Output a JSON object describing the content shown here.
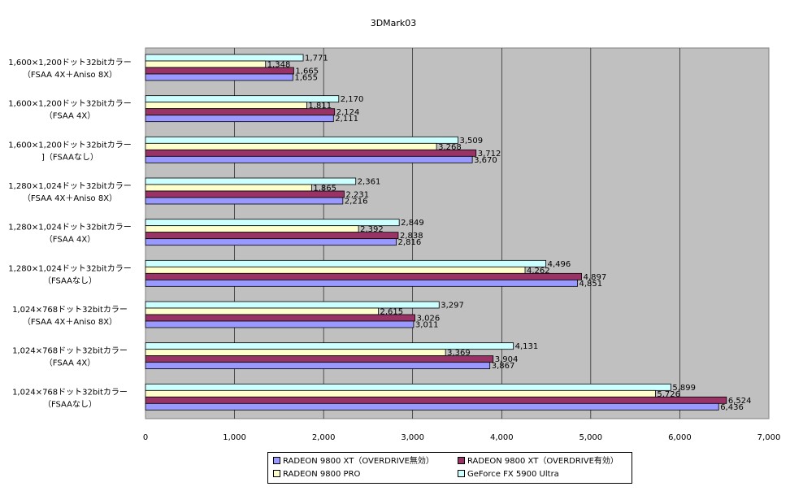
{
  "chart_data": {
    "type": "bar",
    "orientation": "horizontal",
    "title": "3DMark03",
    "xlabel": "",
    "ylabel": "",
    "xlim": [
      0,
      7000
    ],
    "xticks": [
      "0",
      "1,000",
      "2,000",
      "3,000",
      "4,000",
      "5,000",
      "6,000",
      "7,000"
    ],
    "grid": true,
    "legend_position": "bottom",
    "categories": [
      {
        "line1": "1,600×1,200ドット32bitカラー",
        "line2": "（FSAA 4X＋Aniso 8X）"
      },
      {
        "line1": "1,600×1,200ドット32bitカラー",
        "line2": "（FSAA 4X）"
      },
      {
        "line1": "1,600×1,200ドット32bitカラー",
        "line2": "]（FSAAなし）"
      },
      {
        "line1": "1,280×1,024ドット32bitカラー",
        "line2": "（FSAA 4X＋Aniso 8X）"
      },
      {
        "line1": "1,280×1,024ドット32bitカラー",
        "line2": "（FSAA 4X）"
      },
      {
        "line1": "1,280×1,024ドット32bitカラー",
        "line2": "（FSAAなし）"
      },
      {
        "line1": "1,024×768ドット32bitカラー",
        "line2": "（FSAA 4X＋Aniso 8X）"
      },
      {
        "line1": "1,024×768ドット32bitカラー",
        "line2": "（FSAA 4X）"
      },
      {
        "line1": "1,024×768ドット32bitカラー",
        "line2": "（FSAAなし）"
      }
    ],
    "series": [
      {
        "name": "GeForce FX 5900 Ultra",
        "color": "#ccffff",
        "values": [
          1771,
          2170,
          3509,
          2361,
          2849,
          4496,
          3297,
          4131,
          5899
        ],
        "labels": [
          "1,771",
          "2,170",
          "3,509",
          "2,361",
          "2,849",
          "4,496",
          "3,297",
          "4,131",
          "5,899"
        ]
      },
      {
        "name": "RADEON 9800 PRO",
        "color": "#ffffcc",
        "values": [
          1348,
          1811,
          3268,
          1865,
          2392,
          4262,
          2615,
          3369,
          5726
        ],
        "labels": [
          "1,348",
          "1,811",
          "3,268",
          "1,865",
          "2,392",
          "4,262",
          "2,615",
          "3,369",
          "5,726"
        ]
      },
      {
        "name": "RADEON 9800 XT（OVERDRIVE有効）",
        "color": "#993366",
        "values": [
          1665,
          2124,
          3712,
          2231,
          2838,
          4897,
          3026,
          3904,
          6524
        ],
        "labels": [
          "1,665",
          "2,124",
          "3,712",
          "2,231",
          "2,838",
          "4,897",
          "3,026",
          "3,904",
          "6,524"
        ]
      },
      {
        "name": "RADEON 9800 XT（OVERDRIVE無効）",
        "color": "#9999ff",
        "values": [
          1655,
          2111,
          3670,
          2216,
          2816,
          4851,
          3011,
          3867,
          6436
        ],
        "labels": [
          "1,655",
          "2,111",
          "3,670",
          "2,216",
          "2,816",
          "4,851",
          "3,011",
          "3,867",
          "6,436"
        ]
      }
    ],
    "legend_order": [
      3,
      2,
      1,
      0
    ],
    "plot_background": "#c0c0c0"
  }
}
